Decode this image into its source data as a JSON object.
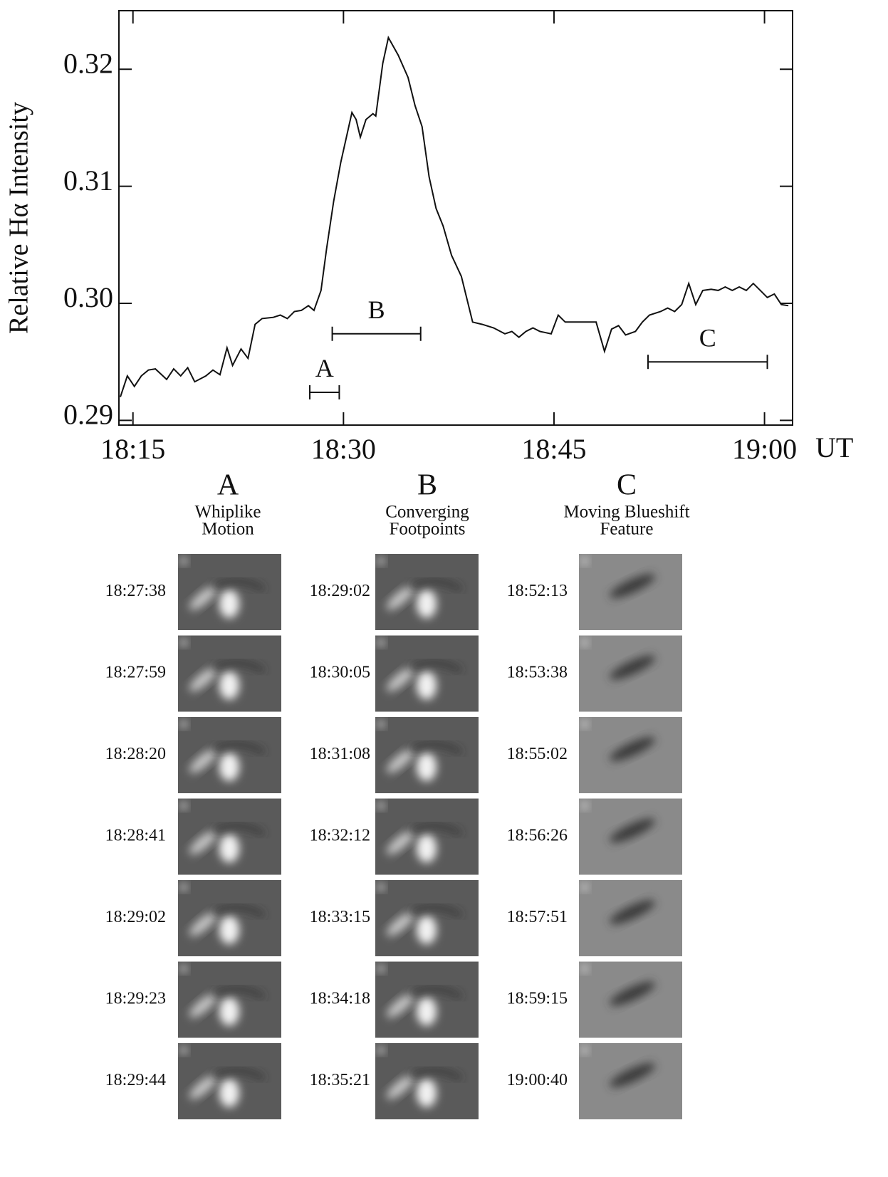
{
  "chart_data": {
    "type": "line",
    "y_label": "Relative Hα Intensity",
    "x_label": "UT",
    "xlim": [
      1094,
      1142
    ],
    "ylim": [
      0.2896,
      0.325
    ],
    "xticks": [
      {
        "value": 1095,
        "label": "18:15"
      },
      {
        "value": 1110,
        "label": "18:30"
      },
      {
        "value": 1125,
        "label": "18:45"
      },
      {
        "value": 1140,
        "label": "19:00"
      }
    ],
    "yticks": [
      0.29,
      {
        "value": 0.3,
        "label": "0.30"
      },
      0.31,
      0.32
    ],
    "color": "#111111",
    "x": [
      1094.1,
      1094.6,
      1095.1,
      1095.6,
      1096.1,
      1096.6,
      1097.4,
      1097.9,
      1098.4,
      1098.9,
      1099.4,
      1100.2,
      1100.7,
      1101.2,
      1101.7,
      1102.1,
      1102.7,
      1103.2,
      1103.7,
      1104.2,
      1105.0,
      1105.5,
      1106.0,
      1106.5,
      1107.0,
      1107.5,
      1107.9,
      1108.4,
      1108.8,
      1109.3,
      1109.8,
      1110.6,
      1110.9,
      1111.2,
      1111.6,
      1112.1,
      1112.3,
      1112.8,
      1113.2,
      1113.9,
      1114.6,
      1115.1,
      1115.6,
      1116.1,
      1116.6,
      1117.1,
      1117.7,
      1118.4,
      1119.2,
      1119.9,
      1120.7,
      1121.5,
      1122.0,
      1122.5,
      1123.0,
      1123.5,
      1124.0,
      1124.8,
      1125.3,
      1125.8,
      1126.5,
      1127.3,
      1128.0,
      1128.6,
      1129.1,
      1129.6,
      1130.1,
      1130.8,
      1131.3,
      1131.8,
      1132.6,
      1133.1,
      1133.6,
      1134.1,
      1134.6,
      1135.1,
      1135.6,
      1136.2,
      1136.7,
      1137.2,
      1137.7,
      1138.2,
      1138.7,
      1139.2,
      1139.7,
      1140.2,
      1140.7,
      1141.2,
      1141.7
    ],
    "values": [
      0.292,
      0.2938,
      0.2929,
      0.2938,
      0.2943,
      0.2944,
      0.2935,
      0.2944,
      0.2938,
      0.2945,
      0.2933,
      0.2938,
      0.2943,
      0.2939,
      0.2962,
      0.2947,
      0.2961,
      0.2953,
      0.2982,
      0.2987,
      0.2988,
      0.299,
      0.2987,
      0.2993,
      0.2994,
      0.2998,
      0.2994,
      0.3011,
      0.3047,
      0.3087,
      0.312,
      0.3163,
      0.3157,
      0.3142,
      0.3157,
      0.3162,
      0.316,
      0.3205,
      0.3227,
      0.3212,
      0.3193,
      0.3169,
      0.3151,
      0.3108,
      0.3081,
      0.3066,
      0.3041,
      0.3023,
      0.2984,
      0.2982,
      0.2979,
      0.2974,
      0.2976,
      0.2971,
      0.2976,
      0.2979,
      0.2976,
      0.2974,
      0.299,
      0.2984,
      0.2984,
      0.2984,
      0.2984,
      0.2959,
      0.2978,
      0.2981,
      0.2973,
      0.2976,
      0.2984,
      0.299,
      0.2993,
      0.2996,
      0.2993,
      0.2999,
      0.3017,
      0.2999,
      0.3011,
      0.3012,
      0.3011,
      0.3014,
      0.3011,
      0.3014,
      0.3011,
      0.3017,
      0.3011,
      0.3005,
      0.3008,
      0.2999,
      0.2998
    ],
    "intervals": [
      {
        "label": "A",
        "start": 1107.6,
        "end": 1109.7,
        "y": 0.2924
      },
      {
        "label": "B",
        "start": 1109.2,
        "end": 1115.5,
        "y": 0.2974
      },
      {
        "label": "C",
        "start": 1131.7,
        "end": 1140.2,
        "y": 0.295
      }
    ]
  },
  "panels": {
    "columns": [
      {
        "letter": "A",
        "title_lines": [
          "Whiplike",
          "Motion"
        ],
        "times": [
          "18:27:38",
          "18:27:59",
          "18:28:20",
          "18:28:41",
          "18:29:02",
          "18:29:23",
          "18:29:44"
        ]
      },
      {
        "letter": "B",
        "title_lines": [
          "Converging",
          "Footpoints"
        ],
        "times": [
          "18:29:02",
          "18:30:05",
          "18:31:08",
          "18:32:12",
          "18:33:15",
          "18:34:18",
          "18:35:21"
        ]
      },
      {
        "letter": "C",
        "title_lines": [
          "Moving Blueshift",
          "Feature"
        ],
        "times": [
          "18:52:13",
          "18:53:38",
          "18:55:02",
          "18:56:26",
          "18:57:51",
          "18:59:15",
          "19:00:40"
        ]
      }
    ]
  }
}
